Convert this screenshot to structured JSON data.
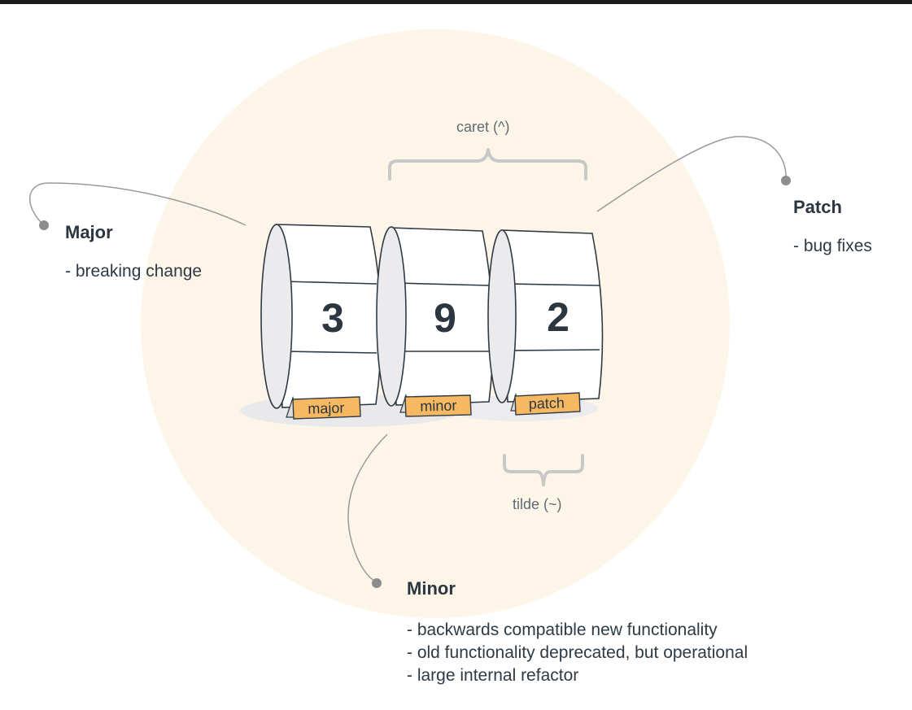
{
  "version": {
    "major": "3",
    "minor": "9",
    "patch": "2"
  },
  "tags": {
    "major": "major",
    "minor": "minor",
    "patch": "patch"
  },
  "ranges": {
    "caret": "caret (^)",
    "tilde": "tilde (~)"
  },
  "callouts": {
    "major": {
      "title": "Major",
      "lines": [
        "- breaking change"
      ]
    },
    "patch": {
      "title": "Patch",
      "lines": [
        "- bug fixes"
      ]
    },
    "minor": {
      "title": "Minor",
      "lines": [
        "- backwards compatible new functionality",
        "- old functionality deprecated, but operational",
        "- large internal refactor"
      ]
    }
  },
  "colors": {
    "background_circle": "#fdf5e8",
    "tag_fill": "#f6b860",
    "outline": "#2f3a44",
    "connector": "#9a9a9a",
    "bracket": "#c8c8c8",
    "shadow": "#e9e9ec"
  }
}
